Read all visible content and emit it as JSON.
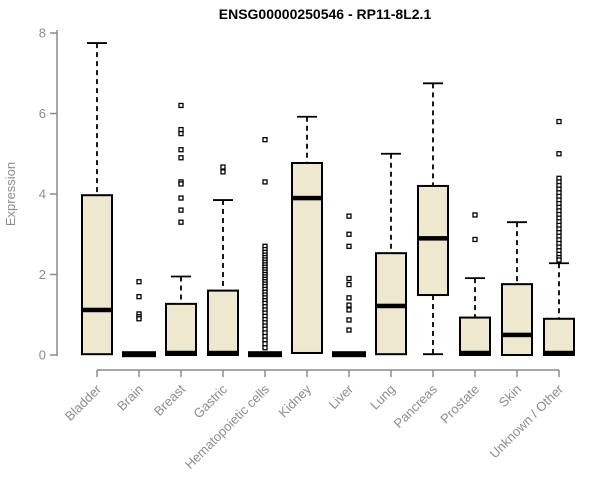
{
  "title": "ENSG00000250546 - RP11-8L2.1",
  "chart_data": {
    "type": "boxplot",
    "title": "ENSG00000250546 - RP11-8L2.1",
    "xlabel": "",
    "ylabel": "Expression",
    "ylim": [
      0,
      8
    ],
    "yticks": [
      0,
      2,
      4,
      6,
      8
    ],
    "grid": false,
    "legend": "none",
    "categories": [
      "Bladder",
      "Brain",
      "Breast",
      "Gastric",
      "Hematopoietic cells",
      "Kidney",
      "Liver",
      "Lung",
      "Pancreas",
      "Prostate",
      "Skin",
      "Unknown / Other"
    ],
    "series": [
      {
        "category": "Bladder",
        "low": 0.02,
        "q1": 0.02,
        "median": 1.12,
        "q3": 3.97,
        "high": 7.75,
        "outliers": []
      },
      {
        "category": "Brain",
        "low": 0,
        "q1": 0,
        "median": 0.02,
        "q3": 0.04,
        "high": 0.04,
        "outliers": [
          1.82,
          1.45,
          1.02,
          0.95,
          0.9
        ]
      },
      {
        "category": "Breast",
        "low": 0,
        "q1": 0,
        "median": 0.05,
        "q3": 1.27,
        "high": 1.95,
        "outliers": [
          6.2,
          5.6,
          5.5,
          5.1,
          4.9,
          4.3,
          4.25,
          3.9,
          3.6,
          3.3
        ]
      },
      {
        "category": "Gastric",
        "low": 0,
        "q1": 0,
        "median": 0.05,
        "q3": 1.6,
        "high": 3.85,
        "outliers": [
          4.67,
          4.55
        ]
      },
      {
        "category": "Hematopoietic cells",
        "low": 0,
        "q1": 0,
        "median": 0.02,
        "q3": 0.04,
        "high": 0.04,
        "outliers": [
          5.35,
          4.3,
          2.7,
          2.62,
          2.55,
          2.48,
          2.42,
          2.36,
          2.3,
          2.24,
          2.18,
          2.12,
          2.06,
          2.0,
          1.94,
          1.88,
          1.82,
          1.76,
          1.7,
          1.63,
          1.56,
          1.49,
          1.42,
          1.35,
          1.28,
          1.2,
          1.12,
          1.04,
          0.96,
          0.88,
          0.8,
          0.72,
          0.64,
          0.55,
          0.46,
          0.37,
          0.28,
          0.18
        ]
      },
      {
        "category": "Kidney",
        "low": 0.02,
        "q1": 0.05,
        "median": 3.9,
        "q3": 4.77,
        "high": 5.92,
        "outliers": []
      },
      {
        "category": "Liver",
        "low": 0,
        "q1": 0,
        "median": 0.02,
        "q3": 0.04,
        "high": 0.04,
        "outliers": [
          3.45,
          3.0,
          2.7,
          1.9,
          1.75,
          1.42,
          1.24,
          1.12,
          0.87,
          0.62
        ]
      },
      {
        "category": "Lung",
        "low": 0.02,
        "q1": 0.02,
        "median": 1.22,
        "q3": 2.53,
        "high": 5.0,
        "outliers": []
      },
      {
        "category": "Pancreas",
        "low": 0.02,
        "q1": 1.49,
        "median": 2.9,
        "q3": 4.2,
        "high": 6.75,
        "outliers": []
      },
      {
        "category": "Prostate",
        "low": 0,
        "q1": 0,
        "median": 0.05,
        "q3": 0.93,
        "high": 1.91,
        "outliers": [
          3.48,
          2.87
        ]
      },
      {
        "category": "Skin",
        "low": 0,
        "q1": 0,
        "median": 0.5,
        "q3": 1.76,
        "high": 3.3,
        "outliers": []
      },
      {
        "category": "Unknown / Other",
        "low": 0,
        "q1": 0,
        "median": 0.05,
        "q3": 0.9,
        "high": 2.28,
        "outliers": [
          5.8,
          5.0,
          4.39,
          4.3,
          4.21,
          4.12,
          4.03,
          3.94,
          3.85,
          3.76,
          3.67,
          3.58,
          3.49,
          3.4,
          3.31,
          3.22,
          3.13,
          3.04,
          2.95,
          2.86,
          2.77,
          2.68,
          2.59,
          2.5,
          2.42,
          2.36
        ]
      }
    ],
    "colors": {
      "box_fill": "#EDE8CE",
      "box_stroke": "#000000",
      "median": "#000000",
      "whisker": "#000000",
      "outlier_stroke": "#000000",
      "outlier_fill": "#ffffff",
      "axis": "#8C8C8C",
      "tick_label": "#8C8C8C",
      "title": "#000000",
      "background": "#FFFFFF"
    }
  }
}
